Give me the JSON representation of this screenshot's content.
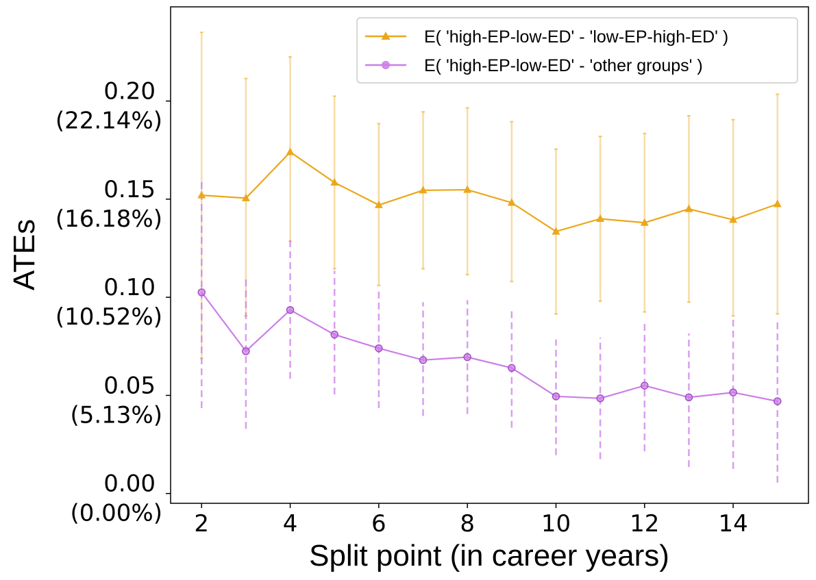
{
  "chart_data": {
    "type": "line",
    "xlabel": "Split point (in career years)",
    "ylabel": "ATEs",
    "xlim": [
      1.3,
      15.7
    ],
    "ylim": [
      -0.005,
      0.248
    ],
    "x": [
      2,
      3,
      4,
      5,
      6,
      7,
      8,
      9,
      10,
      11,
      12,
      13,
      14,
      15
    ],
    "xticks": [
      {
        "value": 2,
        "label": "2"
      },
      {
        "value": 4,
        "label": "4"
      },
      {
        "value": 6,
        "label": "6"
      },
      {
        "value": 8,
        "label": "8"
      },
      {
        "value": 10,
        "label": "10"
      },
      {
        "value": 12,
        "label": "12"
      },
      {
        "value": 14,
        "label": "14"
      }
    ],
    "yticks": [
      {
        "value": 0.0,
        "label": "0.00",
        "sublabel": "(0.00%)"
      },
      {
        "value": 0.05,
        "label": "0.05",
        "sublabel": "(5.13%)"
      },
      {
        "value": 0.1,
        "label": "0.10",
        "sublabel": "(10.52%)"
      },
      {
        "value": 0.15,
        "label": "0.15",
        "sublabel": "(16.18%)"
      },
      {
        "value": 0.2,
        "label": "0.20",
        "sublabel": "(22.14%)"
      }
    ],
    "legend_position": "top-right",
    "series": [
      {
        "name": "E( 'high-EP-low-ED' - 'low-EP-high-ED' )",
        "color": "#eba71a",
        "marker": "triangle",
        "errorbar_style": "solid",
        "values": [
          0.152,
          0.1505,
          0.174,
          0.1585,
          0.147,
          0.1545,
          0.1548,
          0.1482,
          0.1335,
          0.14,
          0.138,
          0.145,
          0.1395,
          0.1475
        ],
        "lower": [
          0.0688,
          0.0905,
          0.1285,
          0.1145,
          0.106,
          0.1145,
          0.1115,
          0.108,
          0.0915,
          0.098,
          0.0925,
          0.0975,
          0.0905,
          0.0915
        ],
        "upper": [
          0.235,
          0.2115,
          0.2225,
          0.2025,
          0.1885,
          0.1945,
          0.1965,
          0.1895,
          0.1755,
          0.182,
          0.1835,
          0.1925,
          0.1905,
          0.2035
        ]
      },
      {
        "name": "E( 'high-EP-low-ED' - 'other groups' )",
        "color": "#cc7de8",
        "marker": "circle",
        "errorbar_style": "dashed",
        "values": [
          0.1025,
          0.0725,
          0.0935,
          0.081,
          0.074,
          0.068,
          0.0695,
          0.064,
          0.0495,
          0.0485,
          0.055,
          0.049,
          0.0515,
          0.047
        ],
        "lower": [
          0.0435,
          0.033,
          0.0585,
          0.0505,
          0.0435,
          0.0395,
          0.0405,
          0.0335,
          0.0195,
          0.0175,
          0.0215,
          0.0135,
          0.0125,
          0.0055
        ],
        "upper": [
          0.1605,
          0.1105,
          0.1295,
          0.1135,
          0.1045,
          0.0975,
          0.0985,
          0.0935,
          0.0785,
          0.0795,
          0.0875,
          0.0815,
          0.0895,
          0.0875
        ]
      }
    ]
  }
}
